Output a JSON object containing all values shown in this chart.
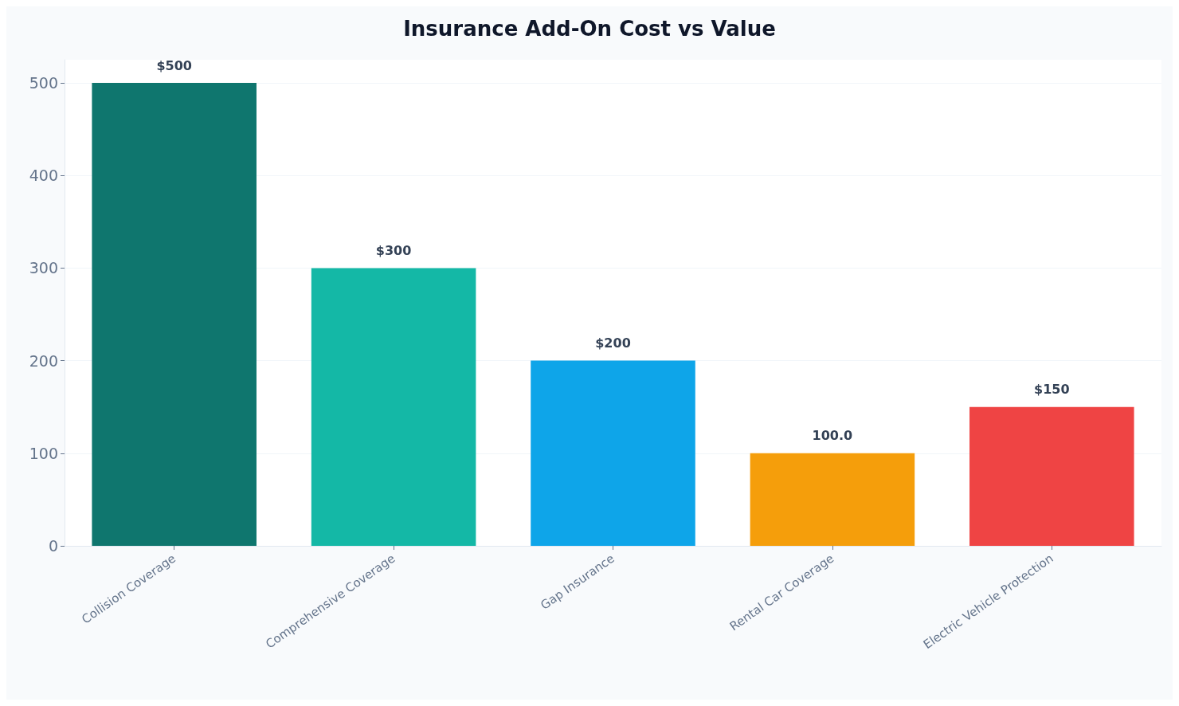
{
  "chart_data": {
    "type": "bar",
    "title": "Insurance Add-On Cost vs Value",
    "categories": [
      "Collision Coverage",
      "Comprehensive Coverage",
      "Gap Insurance",
      "Rental Car Coverage",
      "Electric Vehicle Protection"
    ],
    "values": [
      500,
      300,
      200,
      100,
      150
    ],
    "colors": [
      "#0f766e",
      "#14b8a6",
      "#0ea5e9",
      "#f59e0b",
      "#ef4444"
    ],
    "value_labels": [
      "$500",
      "$300",
      "$200",
      "100.0",
      "$150"
    ],
    "ylim": [
      0,
      525
    ],
    "yticks": [
      0,
      100,
      200,
      300,
      400,
      500
    ],
    "grid": "y"
  }
}
